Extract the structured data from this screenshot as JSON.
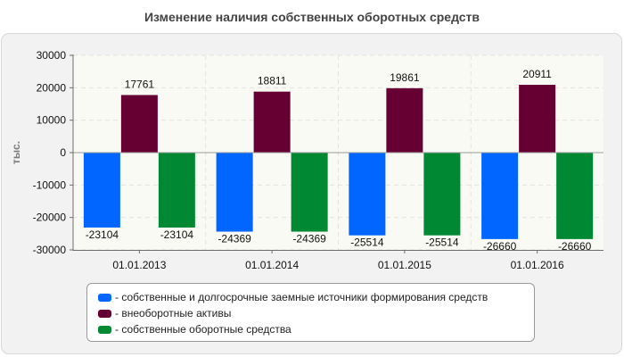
{
  "chart_data": {
    "type": "bar",
    "title": "Изменение наличия собственных оборотных средств",
    "ylabel": "тыс.",
    "xlabel": "",
    "ylim": [
      -30000,
      30000
    ],
    "yticks": [
      30000,
      20000,
      10000,
      0,
      -10000,
      -20000,
      -30000
    ],
    "grid": true,
    "legend_position": "bottom",
    "categories": [
      "01.01.2013",
      "01.01.2014",
      "01.01.2015",
      "01.01.2016"
    ],
    "series": [
      {
        "name": "- собственные и долгосрочные заемные источники формирования средств",
        "color": "#0066ff",
        "values": [
          -23104,
          -24369,
          -25514,
          -26660
        ]
      },
      {
        "name": "- внеоборотные активы",
        "color": "#660033",
        "values": [
          17761,
          18811,
          19861,
          20911
        ]
      },
      {
        "name": "- собственные оборотные средства",
        "color": "#008833",
        "values": [
          -23104,
          -24369,
          -25514,
          -26660
        ]
      }
    ]
  }
}
